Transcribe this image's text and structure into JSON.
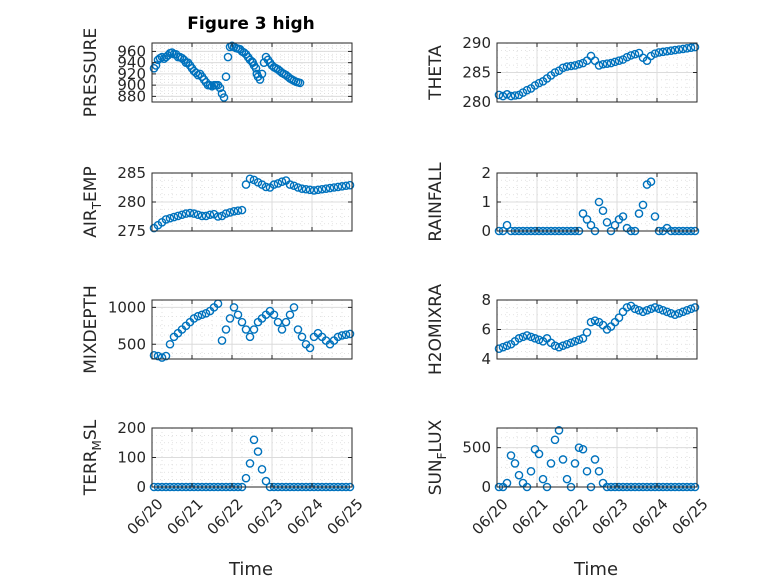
{
  "figure": {
    "title": "Figure 3 high",
    "marker_color": "#0072BD"
  },
  "chart_data": [
    {
      "type": "scatter",
      "ylabel": "PRESSURE",
      "title": "Figure 3 high",
      "xlim": [
        0,
        5
      ],
      "ylim": [
        870,
        975
      ],
      "yticks": [
        880,
        900,
        920,
        940,
        960
      ],
      "x": [
        0.05,
        0.1,
        0.15,
        0.2,
        0.25,
        0.3,
        0.35,
        0.4,
        0.45,
        0.5,
        0.55,
        0.6,
        0.65,
        0.7,
        0.75,
        0.8,
        0.85,
        0.9,
        0.95,
        1.0,
        1.05,
        1.1,
        1.15,
        1.2,
        1.25,
        1.3,
        1.35,
        1.4,
        1.45,
        1.5,
        1.55,
        1.6,
        1.65,
        1.7,
        1.75,
        1.8,
        1.85,
        1.9,
        1.95,
        2.0,
        2.05,
        2.1,
        2.15,
        2.2,
        2.25,
        2.3,
        2.35,
        2.4,
        2.45,
        2.5,
        2.52,
        2.55,
        2.6,
        2.62,
        2.65,
        2.7,
        2.75,
        2.8,
        2.85,
        2.9,
        2.95,
        3.0,
        3.05,
        3.1,
        3.15,
        3.2,
        3.25,
        3.3,
        3.35,
        3.4,
        3.45,
        3.5,
        3.55,
        3.6,
        3.65,
        3.7
      ],
      "y": [
        930,
        935,
        945,
        948,
        950,
        947,
        950,
        953,
        957,
        958,
        955,
        955,
        950,
        950,
        948,
        945,
        940,
        940,
        935,
        930,
        925,
        922,
        918,
        920,
        915,
        910,
        905,
        900,
        900,
        898,
        900,
        900,
        900,
        895,
        885,
        878,
        915,
        950,
        968,
        970,
        968,
        966,
        965,
        964,
        960,
        958,
        955,
        950,
        945,
        942,
        940,
        935,
        930,
        920,
        915,
        910,
        920,
        940,
        950,
        945,
        940,
        935,
        932,
        930,
        928,
        925,
        922,
        920,
        918,
        915,
        912,
        910,
        908,
        906,
        905,
        904
      ]
    },
    {
      "type": "scatter",
      "ylabel": "THETA",
      "xlim": [
        0,
        5
      ],
      "ylim": [
        280,
        290
      ],
      "yticks": [
        280,
        285,
        290
      ],
      "x": [
        0.05,
        0.15,
        0.25,
        0.35,
        0.45,
        0.55,
        0.65,
        0.75,
        0.85,
        0.95,
        1.05,
        1.15,
        1.25,
        1.35,
        1.45,
        1.55,
        1.65,
        1.75,
        1.85,
        1.95,
        2.05,
        2.15,
        2.25,
        2.35,
        2.45,
        2.55,
        2.65,
        2.75,
        2.85,
        2.95,
        3.05,
        3.15,
        3.25,
        3.35,
        3.45,
        3.55,
        3.65,
        3.75,
        3.85,
        3.95,
        4.05,
        4.15,
        4.25,
        4.35,
        4.45,
        4.55,
        4.65,
        4.75,
        4.85,
        4.95
      ],
      "y": [
        281.2,
        281.0,
        281.3,
        281.0,
        281.1,
        281.2,
        281.6,
        282.0,
        282.3,
        282.8,
        283.2,
        283.5,
        284.0,
        284.5,
        285.0,
        285.3,
        285.8,
        286.0,
        286.1,
        286.2,
        286.4,
        286.6,
        287.0,
        287.8,
        287.0,
        286.2,
        286.4,
        286.5,
        286.6,
        286.8,
        287.0,
        287.2,
        287.6,
        287.9,
        288.1,
        288.3,
        287.5,
        287.0,
        287.8,
        288.2,
        288.4,
        288.5,
        288.6,
        288.7,
        288.8,
        288.9,
        289.0,
        289.1,
        289.2,
        289.3
      ]
    },
    {
      "type": "scatter",
      "ylabel": "AIR_TEMP",
      "ylabel_main": "AIR",
      "ylabel_sub": "T",
      "ylabel_tail": "EMP",
      "xlim": [
        0,
        5
      ],
      "ylim": [
        275,
        285
      ],
      "yticks": [
        275,
        280,
        285
      ],
      "x": [
        0.05,
        0.15,
        0.25,
        0.35,
        0.45,
        0.55,
        0.65,
        0.75,
        0.85,
        0.95,
        1.05,
        1.15,
        1.25,
        1.35,
        1.45,
        1.55,
        1.65,
        1.75,
        1.85,
        1.95,
        2.05,
        2.15,
        2.25,
        2.35,
        2.45,
        2.55,
        2.65,
        2.75,
        2.85,
        2.95,
        3.05,
        3.15,
        3.25,
        3.35,
        3.45,
        3.55,
        3.65,
        3.75,
        3.85,
        3.95,
        4.05,
        4.15,
        4.25,
        4.35,
        4.45,
        4.55,
        4.65,
        4.75,
        4.85,
        4.95
      ],
      "y": [
        275.5,
        276.0,
        276.5,
        277.0,
        277.2,
        277.4,
        277.6,
        277.8,
        278.0,
        278.1,
        278.0,
        277.8,
        277.6,
        277.6,
        277.8,
        277.9,
        277.5,
        277.6,
        278.0,
        278.2,
        278.4,
        278.5,
        278.6,
        283.0,
        284.0,
        283.8,
        283.4,
        283.0,
        282.6,
        282.5,
        283.0,
        283.2,
        283.5,
        283.7,
        283.0,
        282.8,
        282.5,
        282.3,
        282.2,
        282.1,
        282.0,
        282.1,
        282.2,
        282.3,
        282.4,
        282.5,
        282.6,
        282.7,
        282.8,
        282.9
      ]
    },
    {
      "type": "scatter",
      "ylabel": "RAINFALL",
      "xlim": [
        0,
        5
      ],
      "ylim": [
        0,
        2
      ],
      "yticks": [
        0,
        1,
        2
      ],
      "x": [
        0.05,
        0.15,
        0.25,
        0.35,
        0.45,
        0.55,
        0.65,
        0.75,
        0.85,
        0.95,
        1.05,
        1.15,
        1.25,
        1.35,
        1.45,
        1.55,
        1.65,
        1.75,
        1.85,
        1.95,
        2.05,
        2.15,
        2.25,
        2.35,
        2.45,
        2.55,
        2.65,
        2.75,
        2.85,
        2.95,
        3.05,
        3.15,
        3.25,
        3.35,
        3.45,
        3.55,
        3.65,
        3.75,
        3.85,
        3.95,
        4.05,
        4.15,
        4.25,
        4.35,
        4.45,
        4.55,
        4.65,
        4.75,
        4.85,
        4.95
      ],
      "y": [
        0,
        0,
        0.2,
        0,
        0,
        0,
        0,
        0,
        0,
        0,
        0,
        0,
        0,
        0,
        0,
        0,
        0,
        0,
        0,
        0,
        0,
        0.6,
        0.4,
        0.2,
        0,
        1.0,
        0.7,
        0.3,
        0,
        0.2,
        0.4,
        0.5,
        0.1,
        0,
        0,
        0.6,
        0.9,
        1.6,
        1.7,
        0.5,
        0,
        0,
        0.1,
        0,
        0,
        0,
        0,
        0,
        0,
        0
      ]
    },
    {
      "type": "scatter",
      "ylabel": "MIXDEPTH",
      "xlim": [
        0,
        5
      ],
      "ylim": [
        300,
        1100
      ],
      "yticks": [
        500,
        1000
      ],
      "x": [
        0.05,
        0.15,
        0.25,
        0.35,
        0.45,
        0.55,
        0.65,
        0.75,
        0.85,
        0.95,
        1.05,
        1.15,
        1.25,
        1.35,
        1.45,
        1.55,
        1.65,
        1.75,
        1.85,
        1.95,
        2.05,
        2.15,
        2.25,
        2.35,
        2.45,
        2.55,
        2.65,
        2.75,
        2.85,
        2.95,
        3.05,
        3.15,
        3.25,
        3.35,
        3.45,
        3.55,
        3.65,
        3.75,
        3.85,
        3.95,
        4.05,
        4.15,
        4.25,
        4.35,
        4.45,
        4.55,
        4.65,
        4.75,
        4.85,
        4.95
      ],
      "y": [
        350,
        340,
        320,
        340,
        500,
        600,
        650,
        700,
        750,
        800,
        850,
        880,
        900,
        920,
        950,
        1000,
        1050,
        550,
        700,
        850,
        1000,
        900,
        800,
        700,
        600,
        700,
        800,
        850,
        900,
        950,
        900,
        800,
        700,
        800,
        900,
        1000,
        700,
        600,
        500,
        450,
        600,
        650,
        600,
        550,
        500,
        550,
        600,
        620,
        630,
        640
      ]
    },
    {
      "type": "scatter",
      "ylabel": "H2OMIXRA",
      "xlim": [
        0,
        5
      ],
      "ylim": [
        4,
        8
      ],
      "yticks": [
        4,
        6,
        8
      ],
      "x": [
        0.05,
        0.15,
        0.25,
        0.35,
        0.45,
        0.55,
        0.65,
        0.75,
        0.85,
        0.95,
        1.05,
        1.15,
        1.25,
        1.35,
        1.45,
        1.55,
        1.65,
        1.75,
        1.85,
        1.95,
        2.05,
        2.15,
        2.25,
        2.35,
        2.45,
        2.55,
        2.65,
        2.75,
        2.85,
        2.95,
        3.05,
        3.15,
        3.25,
        3.35,
        3.45,
        3.55,
        3.65,
        3.75,
        3.85,
        3.95,
        4.05,
        4.15,
        4.25,
        4.35,
        4.45,
        4.55,
        4.65,
        4.75,
        4.85,
        4.95
      ],
      "y": [
        4.7,
        4.8,
        4.9,
        5.0,
        5.2,
        5.4,
        5.5,
        5.6,
        5.5,
        5.4,
        5.3,
        5.2,
        5.4,
        5.1,
        4.9,
        4.8,
        4.9,
        5.0,
        5.1,
        5.2,
        5.3,
        5.4,
        5.8,
        6.5,
        6.6,
        6.5,
        6.3,
        6.0,
        6.2,
        6.5,
        6.8,
        7.2,
        7.5,
        7.6,
        7.4,
        7.3,
        7.2,
        7.3,
        7.4,
        7.5,
        7.4,
        7.3,
        7.2,
        7.1,
        7.0,
        7.1,
        7.2,
        7.3,
        7.4,
        7.5
      ]
    },
    {
      "type": "scatter",
      "ylabel": "TERR_MSL",
      "ylabel_main": "TERR",
      "ylabel_sub": "M",
      "ylabel_tail": "SL",
      "xlim": [
        0,
        5
      ],
      "ylim": [
        0,
        200
      ],
      "yticks": [
        0,
        100,
        200
      ],
      "x": [
        0.05,
        0.15,
        0.25,
        0.35,
        0.45,
        0.55,
        0.65,
        0.75,
        0.85,
        0.95,
        1.05,
        1.15,
        1.25,
        1.35,
        1.45,
        1.55,
        1.65,
        1.75,
        1.85,
        1.95,
        2.05,
        2.15,
        2.25,
        2.35,
        2.45,
        2.55,
        2.65,
        2.75,
        2.85,
        2.95,
        3.05,
        3.15,
        3.25,
        3.35,
        3.45,
        3.55,
        3.65,
        3.75,
        3.85,
        3.95,
        4.05,
        4.15,
        4.25,
        4.35,
        4.45,
        4.55,
        4.65,
        4.75,
        4.85,
        4.95
      ],
      "y": [
        0,
        0,
        0,
        0,
        0,
        0,
        0,
        0,
        0,
        0,
        0,
        0,
        0,
        0,
        0,
        0,
        0,
        0,
        0,
        0,
        0,
        0,
        0,
        30,
        80,
        160,
        120,
        60,
        20,
        0,
        0,
        0,
        0,
        0,
        0,
        0,
        0,
        0,
        0,
        0,
        0,
        0,
        0,
        0,
        0,
        0,
        0,
        0,
        0,
        0
      ]
    },
    {
      "type": "scatter",
      "ylabel": "SUN_FLUX",
      "ylabel_main": "SUN",
      "ylabel_sub": "F",
      "ylabel_tail": "LUX",
      "xlim": [
        0,
        5
      ],
      "ylim": [
        0,
        750
      ],
      "yticks": [
        0,
        500
      ],
      "x": [
        0.05,
        0.15,
        0.25,
        0.35,
        0.45,
        0.55,
        0.65,
        0.75,
        0.85,
        0.95,
        1.05,
        1.15,
        1.25,
        1.35,
        1.45,
        1.55,
        1.65,
        1.75,
        1.85,
        1.95,
        2.05,
        2.15,
        2.25,
        2.35,
        2.45,
        2.55,
        2.65,
        2.75,
        2.85,
        2.95,
        3.05,
        3.15,
        3.25,
        3.35,
        3.45,
        3.55,
        3.65,
        3.75,
        3.85,
        3.95,
        4.05,
        4.15,
        4.25,
        4.35,
        4.45,
        4.55,
        4.65,
        4.75,
        4.85,
        4.95
      ],
      "y": [
        0,
        0,
        50,
        400,
        300,
        150,
        50,
        0,
        200,
        480,
        420,
        100,
        0,
        300,
        600,
        720,
        350,
        100,
        0,
        300,
        500,
        480,
        200,
        0,
        350,
        200,
        50,
        0,
        0,
        0,
        0,
        0,
        0,
        0,
        0,
        0,
        0,
        0,
        0,
        0,
        0,
        0,
        0,
        0,
        0,
        0,
        0,
        0,
        0,
        0
      ]
    }
  ],
  "xaxis": {
    "xlim": [
      0,
      5
    ],
    "tick_values": [
      0,
      1,
      2,
      3,
      4,
      5
    ],
    "tick_labels": [
      "06/20",
      "06/21",
      "06/22",
      "06/23",
      "06/24",
      "06/25"
    ],
    "label": "Time"
  }
}
